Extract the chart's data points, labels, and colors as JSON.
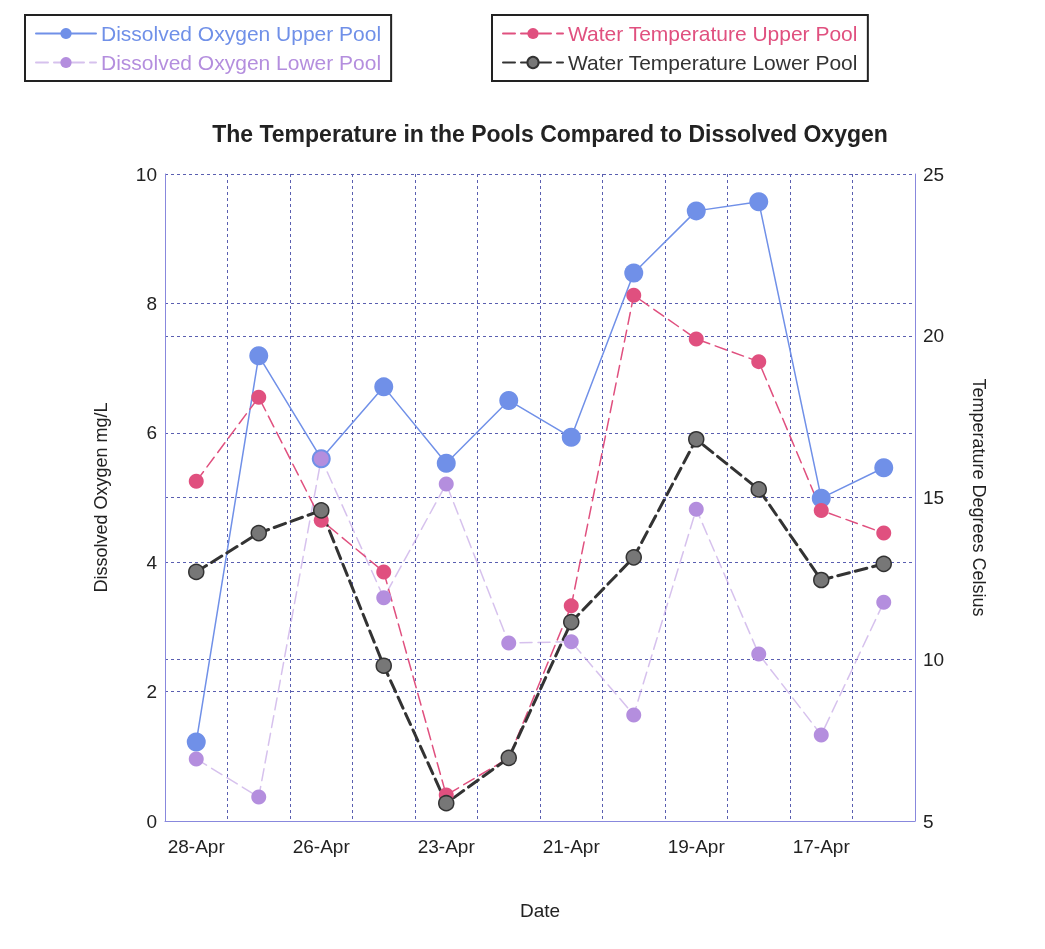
{
  "chart_data": {
    "type": "line",
    "title": "The Temperature in the Pools Compared to Dissolved Oxygen",
    "xlabel": "Date",
    "ylabel": "Dissolved Oxygen mg/L",
    "y2label": "Temperature Degrees Celsius",
    "categories": [
      "28-Apr",
      null,
      "26-Apr",
      null,
      "23-Apr",
      null,
      "21-Apr",
      null,
      "19-Apr",
      null,
      "17-Apr",
      null
    ],
    "series": [
      {
        "name": "Dissolved Oxygen Upper Pool",
        "color": "#7090e8",
        "line_style": "solid",
        "values": [
          1.22,
          7.19,
          5.6,
          6.71,
          5.53,
          6.5,
          5.93,
          8.47,
          9.43,
          9.57,
          4.99,
          5.46
        ]
      },
      {
        "name": "Dissolved Oxygen Lower Pool",
        "color": "#b48ede",
        "line_style": "dashed",
        "values": [
          0.96,
          0.37,
          5.6,
          3.45,
          5.21,
          2.75,
          2.77,
          1.64,
          4.82,
          2.58,
          1.33,
          3.38
        ]
      },
      {
        "name": "Water Temperature Upper Pool",
        "color": "#e0507f",
        "line_style": "dashed",
        "axis": "y2",
        "values": [
          15.5,
          18.1,
          14.3,
          12.7,
          5.8,
          6.95,
          11.65,
          21.25,
          19.9,
          19.2,
          14.6,
          13.9
        ]
      },
      {
        "name": "Water Temperature Lower Pool",
        "color": "#333333",
        "line_style": "dashed",
        "axis": "y2",
        "values": [
          12.7,
          13.9,
          14.6,
          9.8,
          5.55,
          6.95,
          11.15,
          13.15,
          16.8,
          15.25,
          12.45,
          12.95
        ]
      }
    ],
    "ylim": [
      0,
      10
    ],
    "yticks": [
      0,
      2,
      4,
      6,
      8,
      10
    ],
    "y2lim": [
      5,
      25
    ],
    "y2ticks": [
      5,
      10,
      15,
      20,
      25
    ],
    "grid": true,
    "legend": "top",
    "marker": "circle"
  }
}
